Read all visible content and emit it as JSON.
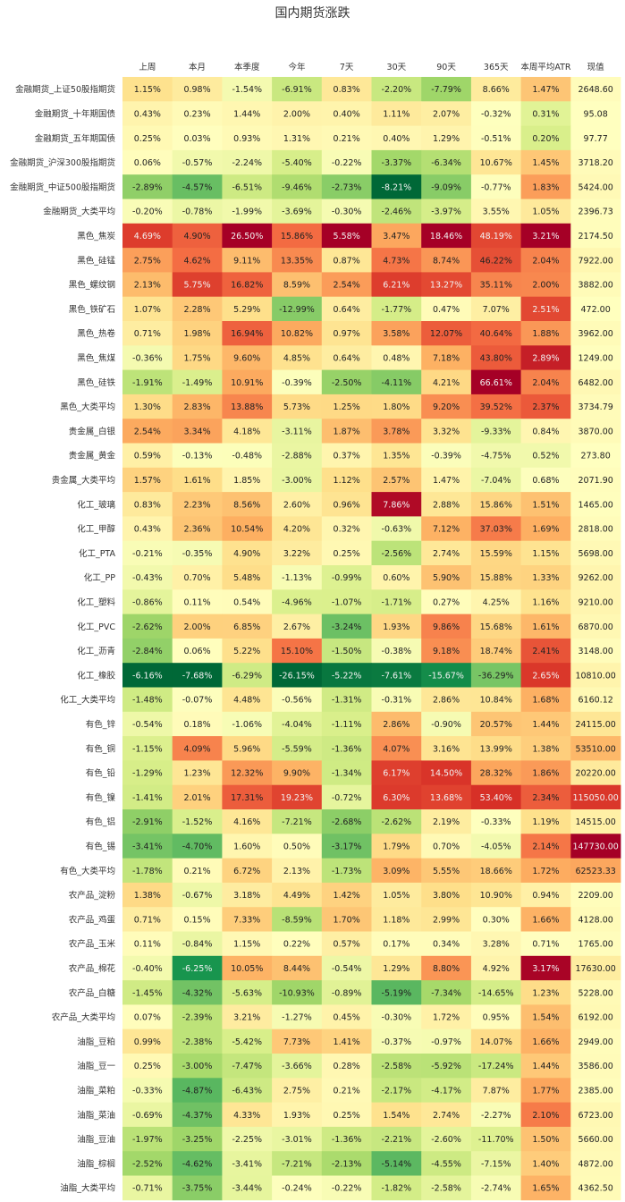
{
  "chart_data": {
    "type": "heatmap",
    "title": "国内期货涨跌",
    "columns": [
      "上周",
      "本月",
      "本季度",
      "今年",
      "7天",
      "30天",
      "90天",
      "365天",
      "本周平均ATR",
      "现值"
    ],
    "rows": [
      {
        "label": "金融期货_上证50股指期货",
        "pct": [
          1.15,
          0.98,
          -1.54,
          -6.91,
          0.83,
          -2.2,
          -7.79,
          8.66,
          1.47
        ],
        "value": 2648.6
      },
      {
        "label": "金融期货_十年期国债",
        "pct": [
          0.43,
          0.23,
          1.44,
          2.0,
          0.4,
          1.11,
          2.07,
          -0.32,
          0.31
        ],
        "value": 95.08
      },
      {
        "label": "金融期货_五年期国债",
        "pct": [
          0.25,
          0.03,
          0.93,
          1.31,
          0.21,
          0.4,
          1.29,
          -0.51,
          0.2
        ],
        "value": 97.77
      },
      {
        "label": "金融期货_沪深300股指期货",
        "pct": [
          0.06,
          -0.57,
          -2.24,
          -5.4,
          -0.22,
          -3.37,
          -6.34,
          10.67,
          1.45
        ],
        "value": 3718.2
      },
      {
        "label": "金融期货_中证500股指期货",
        "pct": [
          -2.89,
          -4.57,
          -6.51,
          -9.46,
          -2.73,
          -8.21,
          -9.09,
          -0.77,
          1.83
        ],
        "value": 5424.0
      },
      {
        "label": "金融期货_大类平均",
        "pct": [
          -0.2,
          -0.78,
          -1.99,
          -3.69,
          -0.3,
          -2.46,
          -3.97,
          3.55,
          1.05
        ],
        "value": 2396.73
      },
      {
        "label": "黑色_焦炭",
        "pct": [
          4.69,
          4.9,
          26.5,
          15.86,
          5.58,
          3.47,
          18.46,
          48.19,
          3.21
        ],
        "value": 2174.5
      },
      {
        "label": "黑色_硅锰",
        "pct": [
          2.75,
          4.62,
          9.11,
          13.35,
          0.87,
          4.73,
          8.74,
          46.22,
          2.04
        ],
        "value": 7922.0
      },
      {
        "label": "黑色_螺纹钢",
        "pct": [
          2.13,
          5.75,
          16.82,
          8.59,
          2.54,
          6.21,
          13.27,
          35.11,
          2.0
        ],
        "value": 3882.0
      },
      {
        "label": "黑色_铁矿石",
        "pct": [
          1.07,
          2.28,
          5.29,
          -12.99,
          0.64,
          -1.77,
          0.47,
          7.07,
          2.51
        ],
        "value": 472.0
      },
      {
        "label": "黑色_热卷",
        "pct": [
          0.71,
          1.98,
          16.94,
          10.82,
          0.97,
          3.58,
          12.07,
          40.64,
          1.88
        ],
        "value": 3962.0
      },
      {
        "label": "黑色_焦煤",
        "pct": [
          -0.36,
          1.75,
          9.6,
          4.85,
          0.64,
          0.48,
          7.18,
          43.8,
          2.89
        ],
        "value": 1249.0
      },
      {
        "label": "黑色_硅铁",
        "pct": [
          -1.91,
          -1.49,
          10.91,
          -0.39,
          -2.5,
          -4.11,
          4.21,
          66.61,
          2.04
        ],
        "value": 6482.0
      },
      {
        "label": "黑色_大类平均",
        "pct": [
          1.3,
          2.83,
          13.88,
          5.73,
          1.25,
          1.8,
          9.2,
          39.52,
          2.37
        ],
        "value": 3734.79
      },
      {
        "label": "贵金属_白银",
        "pct": [
          2.54,
          3.34,
          4.18,
          -3.11,
          1.87,
          3.78,
          3.32,
          -9.33,
          0.84
        ],
        "value": 3870.0
      },
      {
        "label": "贵金属_黄金",
        "pct": [
          0.59,
          -0.13,
          -0.48,
          -2.88,
          0.37,
          1.35,
          -0.39,
          -4.75,
          0.52
        ],
        "value": 273.8
      },
      {
        "label": "贵金属_大类平均",
        "pct": [
          1.57,
          1.61,
          1.85,
          -3.0,
          1.12,
          2.57,
          1.47,
          -7.04,
          0.68
        ],
        "value": 2071.9
      },
      {
        "label": "化工_玻璃",
        "pct": [
          0.83,
          2.23,
          8.56,
          2.6,
          0.96,
          7.86,
          2.88,
          15.86,
          1.51
        ],
        "value": 1465.0
      },
      {
        "label": "化工_甲醇",
        "pct": [
          0.43,
          2.36,
          10.54,
          4.2,
          0.32,
          -0.63,
          7.12,
          37.03,
          1.69
        ],
        "value": 2818.0
      },
      {
        "label": "化工_PTA",
        "pct": [
          -0.21,
          -0.35,
          4.9,
          3.22,
          0.25,
          -2.56,
          2.74,
          15.59,
          1.15
        ],
        "value": 5698.0
      },
      {
        "label": "化工_PP",
        "pct": [
          -0.43,
          0.7,
          5.48,
          -1.13,
          -0.99,
          0.6,
          5.9,
          15.88,
          1.33
        ],
        "value": 9262.0
      },
      {
        "label": "化工_塑料",
        "pct": [
          -0.86,
          0.11,
          0.54,
          -4.96,
          -1.07,
          -1.71,
          0.27,
          4.25,
          1.16
        ],
        "value": 9210.0
      },
      {
        "label": "化工_PVC",
        "pct": [
          -2.62,
          2.0,
          6.85,
          2.67,
          -3.24,
          1.93,
          9.86,
          15.68,
          1.61
        ],
        "value": 6870.0
      },
      {
        "label": "化工_沥青",
        "pct": [
          -2.84,
          0.06,
          5.22,
          15.1,
          -1.5,
          -0.38,
          9.18,
          18.74,
          2.41
        ],
        "value": 3148.0
      },
      {
        "label": "化工_橡胶",
        "pct": [
          -6.16,
          -7.68,
          -6.29,
          -26.15,
          -5.22,
          -7.61,
          -15.67,
          -36.29,
          2.65
        ],
        "value": 10810.0
      },
      {
        "label": "化工_大类平均",
        "pct": [
          -1.48,
          -0.07,
          4.48,
          -0.56,
          -1.31,
          -0.31,
          2.86,
          10.84,
          1.68
        ],
        "value": 6160.12
      },
      {
        "label": "有色_锌",
        "pct": [
          -0.54,
          0.18,
          -1.06,
          -4.04,
          -1.11,
          2.86,
          -0.9,
          20.57,
          1.44
        ],
        "value": 24115.0
      },
      {
        "label": "有色_铜",
        "pct": [
          -1.15,
          4.09,
          5.96,
          -5.59,
          -1.36,
          4.07,
          3.16,
          13.99,
          1.38
        ],
        "value": 53510.0
      },
      {
        "label": "有色_铅",
        "pct": [
          -1.29,
          1.23,
          12.32,
          9.9,
          -1.34,
          6.17,
          14.5,
          28.32,
          1.86
        ],
        "value": 20220.0
      },
      {
        "label": "有色_镍",
        "pct": [
          -1.41,
          2.01,
          17.31,
          19.23,
          -0.72,
          6.3,
          13.68,
          53.4,
          2.34
        ],
        "value": 115050.0
      },
      {
        "label": "有色_铝",
        "pct": [
          -2.91,
          -1.52,
          4.16,
          -7.21,
          -2.68,
          -2.62,
          2.19,
          -0.33,
          1.19
        ],
        "value": 14515.0
      },
      {
        "label": "有色_锡",
        "pct": [
          -3.41,
          -4.7,
          1.6,
          0.5,
          -3.17,
          1.79,
          0.7,
          -4.05,
          2.14
        ],
        "value": 147730.0
      },
      {
        "label": "有色_大类平均",
        "pct": [
          -1.78,
          0.21,
          6.72,
          2.13,
          -1.73,
          3.09,
          5.55,
          18.66,
          1.72
        ],
        "value": 62523.33
      },
      {
        "label": "农产品_淀粉",
        "pct": [
          1.38,
          -0.67,
          3.18,
          4.49,
          1.42,
          1.05,
          3.8,
          10.9,
          0.94
        ],
        "value": 2209.0
      },
      {
        "label": "农产品_鸡蛋",
        "pct": [
          0.71,
          0.15,
          7.33,
          -8.59,
          1.7,
          1.18,
          2.99,
          0.3,
          1.66
        ],
        "value": 4128.0
      },
      {
        "label": "农产品_玉米",
        "pct": [
          0.11,
          -0.84,
          1.15,
          0.22,
          0.57,
          0.17,
          0.34,
          3.28,
          0.71
        ],
        "value": 1765.0
      },
      {
        "label": "农产品_棉花",
        "pct": [
          -0.4,
          -6.25,
          10.05,
          8.44,
          -0.54,
          1.29,
          8.8,
          4.92,
          3.17
        ],
        "value": 17630.0
      },
      {
        "label": "农产品_白糖",
        "pct": [
          -1.45,
          -4.32,
          -5.63,
          -10.93,
          -0.89,
          -5.19,
          -7.34,
          -14.65,
          1.23
        ],
        "value": 5228.0
      },
      {
        "label": "农产品_大类平均",
        "pct": [
          0.07,
          -2.39,
          3.21,
          -1.27,
          0.45,
          -0.3,
          1.72,
          0.95,
          1.54
        ],
        "value": 6192.0
      },
      {
        "label": "油脂_豆粕",
        "pct": [
          0.99,
          -2.38,
          -5.42,
          7.73,
          1.41,
          -0.37,
          -0.97,
          14.07,
          1.66
        ],
        "value": 2949.0
      },
      {
        "label": "油脂_豆一",
        "pct": [
          0.25,
          -3.0,
          -7.47,
          -3.66,
          0.28,
          -2.58,
          -5.92,
          -17.24,
          1.44
        ],
        "value": 3586.0
      },
      {
        "label": "油脂_菜粕",
        "pct": [
          -0.33,
          -4.87,
          -6.43,
          2.75,
          0.21,
          -2.17,
          -4.17,
          7.87,
          1.77
        ],
        "value": 2385.0
      },
      {
        "label": "油脂_菜油",
        "pct": [
          -0.69,
          -4.37,
          4.33,
          1.93,
          0.25,
          1.54,
          2.74,
          -2.27,
          2.1
        ],
        "value": 6723.0
      },
      {
        "label": "油脂_豆油",
        "pct": [
          -1.97,
          -3.25,
          -2.25,
          -3.01,
          -1.36,
          -2.21,
          -2.6,
          -11.7,
          1.5
        ],
        "value": 5660.0
      },
      {
        "label": "油脂_棕榈",
        "pct": [
          -2.52,
          -4.62,
          -3.41,
          -7.21,
          -2.13,
          -5.14,
          -4.55,
          -7.15,
          1.4
        ],
        "value": 4872.0
      },
      {
        "label": "油脂_大类平均",
        "pct": [
          -0.71,
          -3.75,
          -3.44,
          -0.24,
          -0.22,
          -1.82,
          -2.58,
          -2.74,
          1.65
        ],
        "value": 4362.5
      }
    ],
    "colormap": "RdYlGn_r",
    "grid": false,
    "legend": "none"
  }
}
